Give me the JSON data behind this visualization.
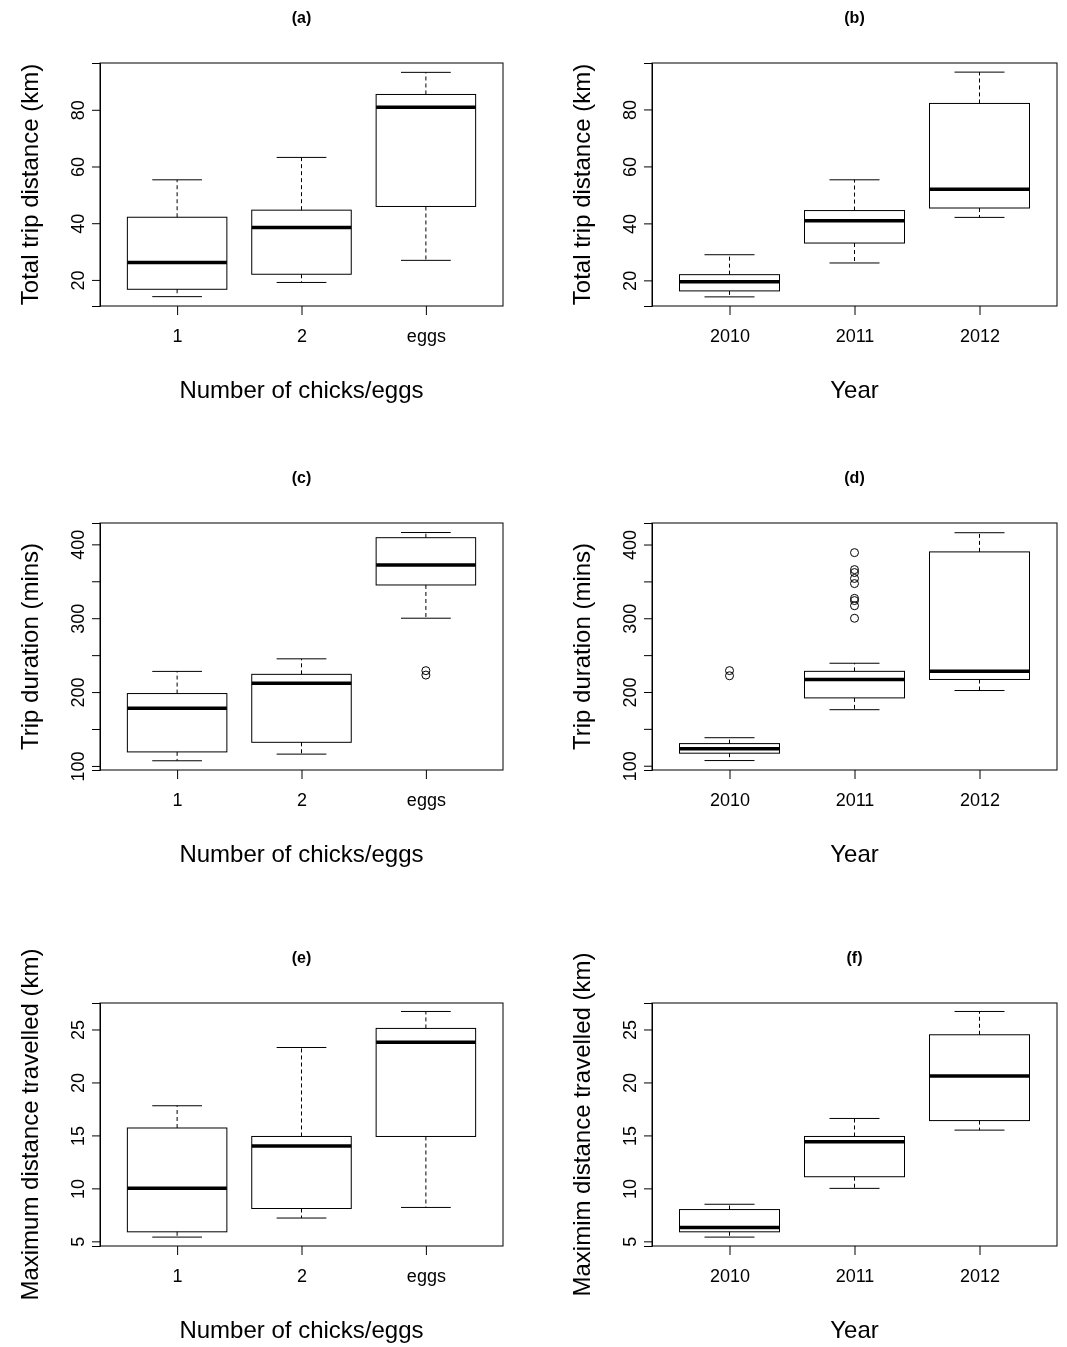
{
  "chart_data": [
    {
      "type": "box",
      "title": "(a)",
      "xlabel": "Number of chicks/eggs",
      "ylabel": "Total trip distance (km)",
      "categories": [
        "1",
        "2",
        "eggs"
      ],
      "ylim": [
        10.8,
        96.5
      ],
      "yticks": [
        20,
        40,
        60,
        80
      ],
      "boxes": [
        {
          "low": 14.1,
          "q1": 16.7,
          "median": 26.1,
          "q3": 42.1,
          "high": 55.3
        },
        {
          "low": 19.1,
          "q1": 22.0,
          "median": 38.5,
          "q3": 44.6,
          "high": 63.2
        },
        {
          "low": 26.9,
          "q1": 45.9,
          "median": 80.9,
          "q3": 85.4,
          "high": 93.2
        }
      ]
    },
    {
      "type": "box",
      "title": "(b)",
      "xlabel": "Year",
      "ylabel": "Total trip distance (km)",
      "categories": [
        "2010",
        "2011",
        "2012"
      ],
      "ylim": [
        11.0,
        96.3
      ],
      "yticks": [
        20,
        40,
        60,
        80
      ],
      "boxes": [
        {
          "low": 14.2,
          "q1": 16.3,
          "median": 19.5,
          "q3": 22.0,
          "high": 29.0
        },
        {
          "low": 26.1,
          "q1": 33.1,
          "median": 40.9,
          "q3": 44.5,
          "high": 55.3
        },
        {
          "low": 42.1,
          "q1": 45.4,
          "median": 52.0,
          "q3": 82.1,
          "high": 93.1
        }
      ]
    },
    {
      "type": "box",
      "title": "(c)",
      "xlabel": "Number of chicks/eggs",
      "ylabel": "Trip duration (mins)",
      "categories": [
        "1",
        "2",
        "eggs"
      ],
      "ylim": [
        94.5,
        428.9
      ],
      "yticks": [
        100,
        {
          "value": 150,
          "label": null
        },
        200,
        {
          "value": 250,
          "label": null
        },
        300,
        {
          "value": 350,
          "label": null
        },
        400
      ],
      "boxes": [
        {
          "low": 107,
          "q1": 119,
          "median": 178,
          "q3": 198,
          "high": 228
        },
        {
          "low": 116,
          "q1": 132,
          "median": 212,
          "q3": 224,
          "high": 245
        },
        {
          "low": 300,
          "q1": 345,
          "median": 372,
          "q3": 409,
          "high": 416,
          "outliers": [
            229,
            223
          ]
        }
      ]
    },
    {
      "type": "box",
      "title": "(d)",
      "xlabel": "Year",
      "ylabel": "Trip duration (mins)",
      "categories": [
        "2010",
        "2011",
        "2012"
      ],
      "ylim": [
        94.2,
        429.2
      ],
      "yticks": [
        100,
        {
          "value": 150,
          "label": null
        },
        200,
        {
          "value": 250,
          "label": null
        },
        300,
        {
          "value": 350,
          "label": null
        },
        400
      ],
      "boxes": [
        {
          "low": 107,
          "q1": 117,
          "median": 123,
          "q3": 130,
          "high": 138,
          "outliers": [
            229,
            222
          ]
        },
        {
          "low": 176,
          "q1": 192,
          "median": 217,
          "q3": 228,
          "high": 239,
          "outliers": [
            389,
            366,
            362,
            354,
            347,
            327,
            324,
            317,
            300
          ]
        },
        {
          "low": 202,
          "q1": 217,
          "median": 228,
          "q3": 390,
          "high": 416
        }
      ]
    },
    {
      "type": "box",
      "title": "(e)",
      "xlabel": "Number of chicks/eggs",
      "ylabel": "Maximum distance travelled (km)",
      "categories": [
        "1",
        "2",
        "eggs"
      ],
      "ylim": [
        4.56,
        27.5
      ],
      "yticks": [
        5,
        10,
        15,
        20,
        25
      ],
      "boxes": [
        {
          "low": 5.4,
          "q1": 5.9,
          "median": 10.0,
          "q3": 15.7,
          "high": 17.8
        },
        {
          "low": 7.2,
          "q1": 8.1,
          "median": 14.0,
          "q3": 14.9,
          "high": 23.3
        },
        {
          "low": 8.2,
          "q1": 14.9,
          "median": 23.8,
          "q3": 25.1,
          "high": 26.7
        }
      ]
    },
    {
      "type": "box",
      "title": "(f)",
      "xlabel": "Year",
      "ylabel": "Maximim distance travelled (km)",
      "categories": [
        "2010",
        "2011",
        "2012"
      ],
      "ylim": [
        4.56,
        27.5
      ],
      "yticks": [
        5,
        10,
        15,
        20,
        25
      ],
      "boxes": [
        {
          "low": 5.4,
          "q1": 5.9,
          "median": 6.3,
          "q3": 8.0,
          "high": 8.5
        },
        {
          "low": 10.0,
          "q1": 11.1,
          "median": 14.4,
          "q3": 14.9,
          "high": 16.6
        },
        {
          "low": 15.5,
          "q1": 16.4,
          "median": 20.6,
          "q3": 24.5,
          "high": 26.7
        }
      ]
    }
  ]
}
